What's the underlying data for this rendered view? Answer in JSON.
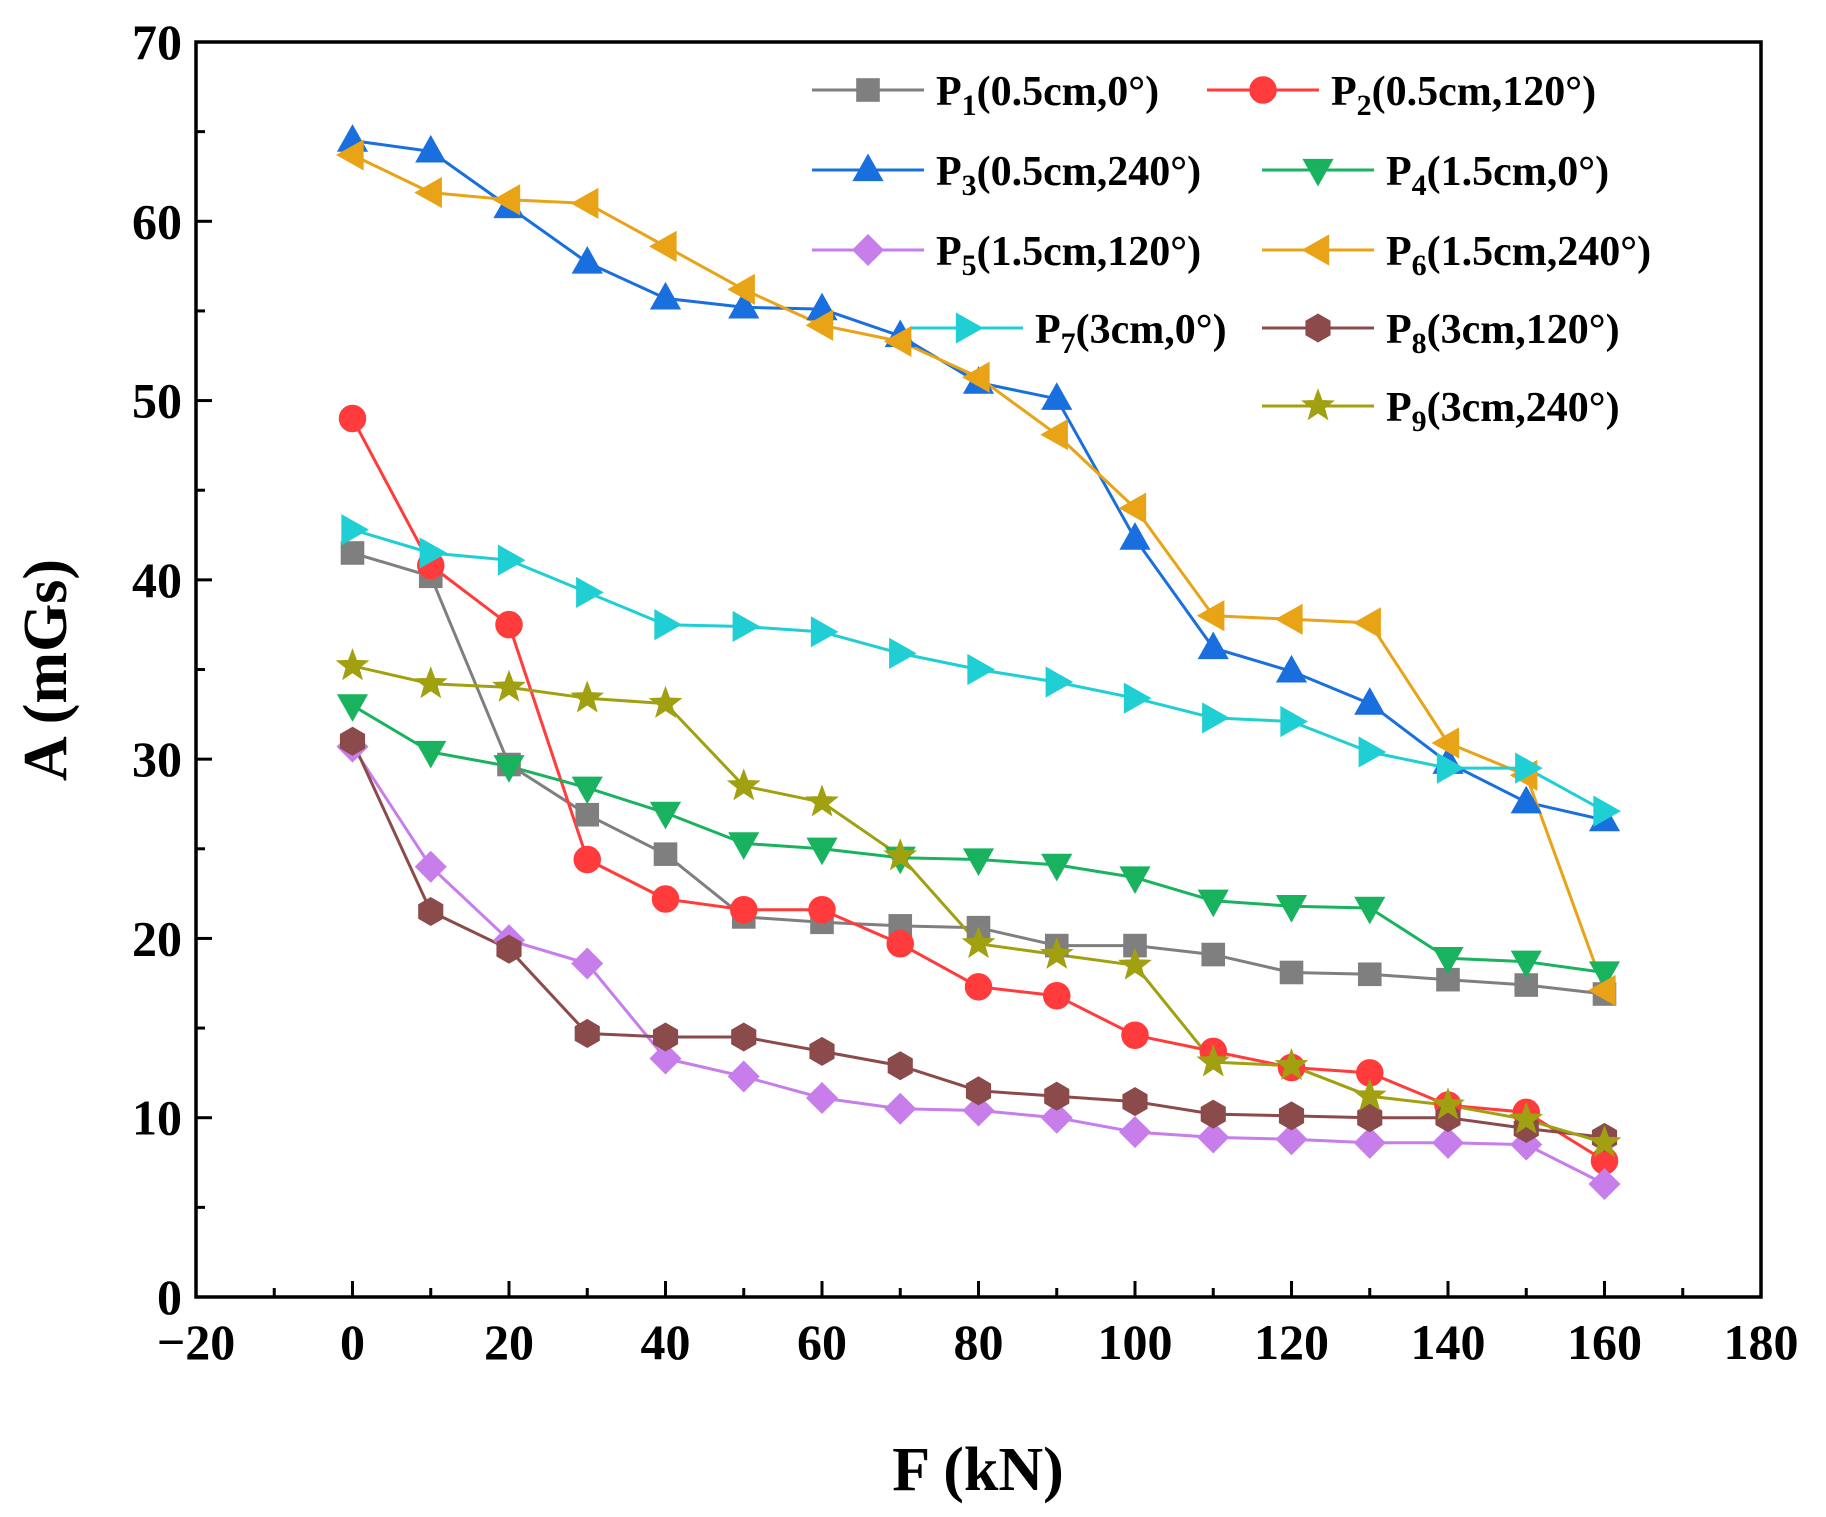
{
  "chart_data": {
    "type": "line",
    "title": "",
    "xlabel": "F (kN)",
    "ylabel": "A (mGs)",
    "xlim": [
      -20,
      180
    ],
    "ylim": [
      0,
      70
    ],
    "x_ticks": [
      -20,
      0,
      20,
      40,
      60,
      80,
      100,
      120,
      140,
      160,
      180
    ],
    "y_ticks": [
      0,
      10,
      20,
      30,
      40,
      50,
      60,
      70
    ],
    "x_tick_labels": [
      "−20",
      "0",
      "20",
      "40",
      "60",
      "80",
      "100",
      "120",
      "140",
      "160",
      "180"
    ],
    "y_tick_labels": [
      "0",
      "10",
      "20",
      "30",
      "40",
      "50",
      "60",
      "70"
    ],
    "grid": false,
    "legend_position": "top-right",
    "x": [
      0,
      10,
      20,
      30,
      40,
      50,
      60,
      70,
      80,
      90,
      100,
      110,
      120,
      130,
      140,
      150,
      160
    ],
    "series": [
      {
        "name": "P1(0.5cm,0°)",
        "label_main": "P",
        "label_sub": "1",
        "label_rest": "(0.5cm,0°)",
        "color": "#7f7f7f",
        "marker": "square",
        "values": [
          41.5,
          40.2,
          29.7,
          26.9,
          24.7,
          21.2,
          20.9,
          20.7,
          20.6,
          19.6,
          19.6,
          19.1,
          18.1,
          18.0,
          17.7,
          17.4,
          16.9
        ]
      },
      {
        "name": "P2(0.5cm,120°)",
        "label_main": "P",
        "label_sub": "2",
        "label_rest": "(0.5cm,120°)",
        "color": "#ff3b3b",
        "marker": "circle",
        "values": [
          49.0,
          40.8,
          37.5,
          24.4,
          22.2,
          21.6,
          21.6,
          19.7,
          17.3,
          16.8,
          14.6,
          13.7,
          12.8,
          12.5,
          10.7,
          10.3,
          7.6
        ]
      },
      {
        "name": "P3(0.5cm,240°)",
        "label_main": "P",
        "label_sub": "3",
        "label_rest": "(0.5cm,240°)",
        "color": "#1a6fdf",
        "marker": "triangle-up",
        "values": [
          64.5,
          63.9,
          60.8,
          57.7,
          55.7,
          55.2,
          55.1,
          53.6,
          51.0,
          50.1,
          42.3,
          36.2,
          34.9,
          33.1,
          29.8,
          27.6,
          26.6
        ]
      },
      {
        "name": "P4(1.5cm,0°)",
        "label_main": "P",
        "label_sub": "4",
        "label_rest": "(1.5cm,0°)",
        "color": "#19b35f",
        "marker": "triangle-down",
        "values": [
          33.0,
          30.4,
          29.6,
          28.4,
          27.0,
          25.3,
          25.0,
          24.5,
          24.4,
          24.1,
          23.4,
          22.1,
          21.8,
          21.7,
          18.9,
          18.7,
          18.1
        ]
      },
      {
        "name": "P5(1.5cm,120°)",
        "label_main": "P",
        "label_sub": "5",
        "label_rest": "(1.5cm,120°)",
        "color": "#c77dea",
        "marker": "diamond",
        "values": [
          30.7,
          24.0,
          19.9,
          18.6,
          13.3,
          12.3,
          11.1,
          10.5,
          10.4,
          10.0,
          9.2,
          8.9,
          8.8,
          8.6,
          8.6,
          8.5,
          6.3
        ]
      },
      {
        "name": "P6(1.5cm,240°)",
        "label_main": "P",
        "label_sub": "6",
        "label_rest": "(1.5cm,240°)",
        "color": "#e8a317",
        "marker": "triangle-left",
        "values": [
          63.7,
          61.6,
          61.2,
          61.0,
          58.6,
          56.2,
          54.2,
          53.3,
          51.3,
          48.1,
          44.0,
          38.0,
          37.8,
          37.6,
          30.9,
          29.1,
          17.1
        ]
      },
      {
        "name": "P7(3cm,0°)",
        "label_main": "P",
        "label_sub": "7",
        "label_rest": "(3cm,0°)",
        "color": "#1fcfd4",
        "marker": "triangle-right",
        "values": [
          42.8,
          41.5,
          41.1,
          39.3,
          37.5,
          37.4,
          37.1,
          35.9,
          35.0,
          34.3,
          33.4,
          32.3,
          32.1,
          30.4,
          29.5,
          29.5,
          27.1
        ]
      },
      {
        "name": "P8(3cm,120°)",
        "label_main": "P",
        "label_sub": "8",
        "label_rest": "(3cm,120°)",
        "color": "#8b4b4b",
        "marker": "hexagon",
        "values": [
          31.0,
          21.5,
          19.4,
          14.7,
          14.5,
          14.5,
          13.7,
          12.9,
          11.5,
          11.2,
          10.9,
          10.2,
          10.1,
          10.0,
          10.0,
          9.4,
          8.9
        ]
      },
      {
        "name": "P9(3cm,240°)",
        "label_main": "P",
        "label_sub": "9",
        "label_rest": "(3cm,240°)",
        "color": "#a0a010",
        "marker": "star",
        "values": [
          35.2,
          34.2,
          34.0,
          33.4,
          33.1,
          28.5,
          27.6,
          24.6,
          19.7,
          19.1,
          18.5,
          13.1,
          12.9,
          11.2,
          10.7,
          9.9,
          8.6
        ]
      }
    ]
  }
}
